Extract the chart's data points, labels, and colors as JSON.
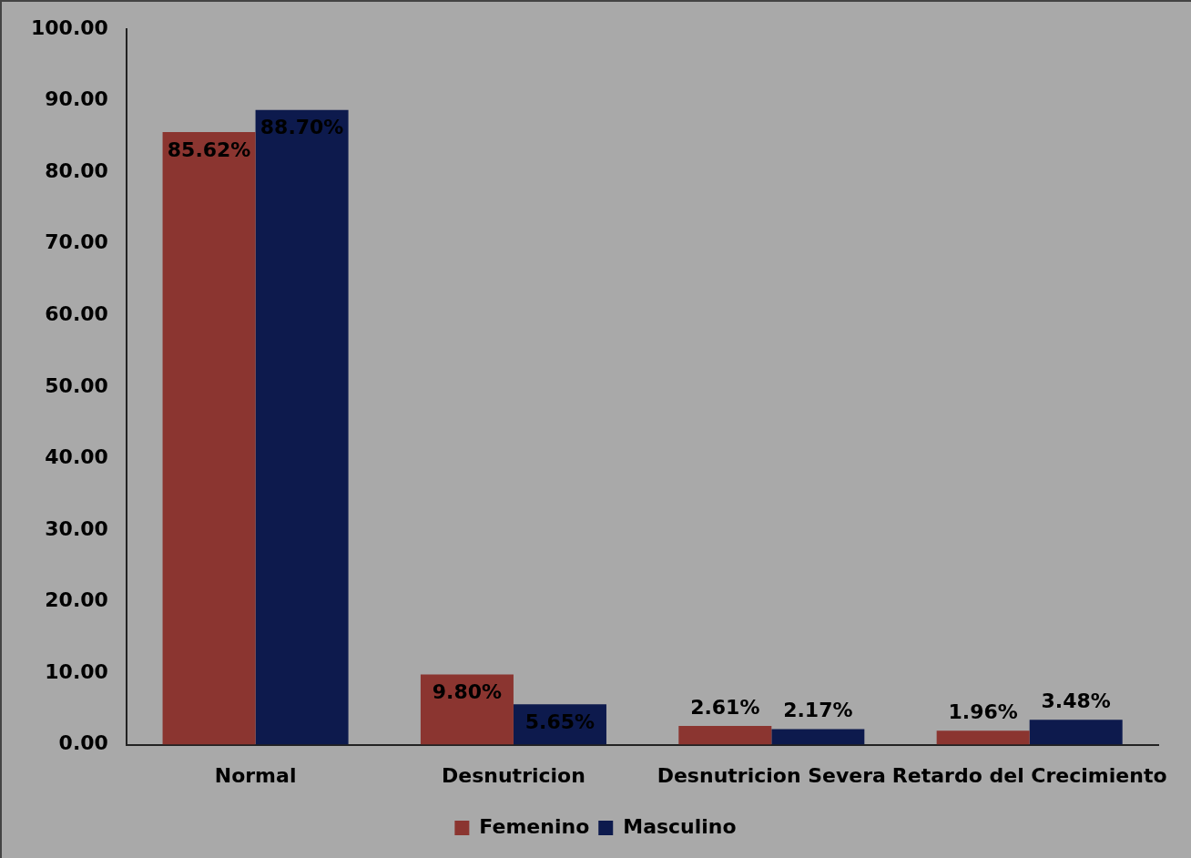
{
  "chart_data": {
    "type": "bar",
    "categories": [
      "Normal",
      "Desnutricion",
      "Desnutricion Severa",
      "Retardo del Crecimiento"
    ],
    "series": [
      {
        "name": "Femenino",
        "color": "#8b3530",
        "values": [
          85.62,
          9.8,
          2.61,
          1.96
        ],
        "value_labels": [
          "85.62%",
          "9.80%",
          "2.61%",
          "1.96%"
        ]
      },
      {
        "name": "Masculino",
        "color": "#0d1a4d",
        "values": [
          88.7,
          5.65,
          2.17,
          3.48
        ],
        "value_labels": [
          "88.70%",
          "5.65%",
          "2.17%",
          "3.48%"
        ]
      }
    ],
    "ylim": [
      0,
      100
    ],
    "yticks": [
      {
        "value": 0,
        "label": "0.00"
      },
      {
        "value": 10,
        "label": "10.00"
      },
      {
        "value": 20,
        "label": "20.00"
      },
      {
        "value": 30,
        "label": "30.00"
      },
      {
        "value": 40,
        "label": "40.00"
      },
      {
        "value": 50,
        "label": "50.00"
      },
      {
        "value": 60,
        "label": "60.00"
      },
      {
        "value": 70,
        "label": "70.00"
      },
      {
        "value": 80,
        "label": "80.00"
      },
      {
        "value": 90,
        "label": "90.00"
      },
      {
        "value": 100,
        "label": "100.00"
      }
    ],
    "grid": false,
    "legend": "bottom"
  }
}
